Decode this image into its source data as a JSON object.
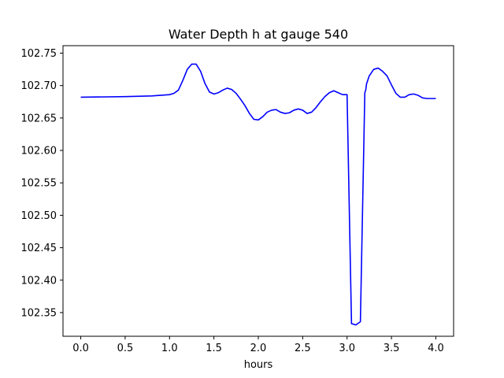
{
  "chart_data": {
    "type": "line",
    "title": "Water Depth h at gauge 540",
    "xlabel": "hours",
    "ylabel": "",
    "xlim": [
      -0.2,
      4.2
    ],
    "ylim": [
      102.3135,
      102.7615
    ],
    "xticks": [
      0.0,
      0.5,
      1.0,
      1.5,
      2.0,
      2.5,
      3.0,
      3.5,
      4.0
    ],
    "xtick_labels": [
      "0.0",
      "0.5",
      "1.0",
      "1.5",
      "2.0",
      "2.5",
      "3.0",
      "3.5",
      "4.0"
    ],
    "yticks": [
      102.35,
      102.4,
      102.45,
      102.5,
      102.55,
      102.6,
      102.65,
      102.7,
      102.75
    ],
    "ytick_labels": [
      "102.35",
      "102.40",
      "102.45",
      "102.50",
      "102.55",
      "102.60",
      "102.65",
      "102.70",
      "102.75"
    ],
    "grid": false,
    "series": [
      {
        "color": "#0000ff",
        "x": [
          0.0,
          0.5,
          0.8,
          1.0,
          1.05,
          1.1,
          1.15,
          1.2,
          1.25,
          1.3,
          1.35,
          1.4,
          1.45,
          1.5,
          1.55,
          1.6,
          1.65,
          1.7,
          1.75,
          1.8,
          1.85,
          1.9,
          1.95,
          2.0,
          2.05,
          2.1,
          2.15,
          2.2,
          2.25,
          2.3,
          2.35,
          2.4,
          2.45,
          2.5,
          2.55,
          2.6,
          2.65,
          2.7,
          2.75,
          2.8,
          2.85,
          2.9,
          2.95,
          3.0,
          3.05,
          3.1,
          3.11,
          3.15,
          3.2,
          3.21,
          3.22,
          3.25,
          3.3,
          3.35,
          3.4,
          3.45,
          3.5,
          3.55,
          3.6,
          3.65,
          3.7,
          3.75,
          3.8,
          3.85,
          3.9,
          3.95,
          4.0
        ],
        "y": [
          102.682,
          102.683,
          102.684,
          102.686,
          102.688,
          102.693,
          102.708,
          102.725,
          102.733,
          102.733,
          102.722,
          102.703,
          102.69,
          102.687,
          102.689,
          102.693,
          102.696,
          102.694,
          102.688,
          102.679,
          102.669,
          102.657,
          102.648,
          102.647,
          102.652,
          102.659,
          102.662,
          102.663,
          102.659,
          102.657,
          102.658,
          102.662,
          102.664,
          102.662,
          102.657,
          102.659,
          102.666,
          102.675,
          102.683,
          102.689,
          102.692,
          102.689,
          102.686,
          102.686,
          102.333,
          102.331,
          102.332,
          102.336,
          102.689,
          102.693,
          102.703,
          102.715,
          102.725,
          102.727,
          102.722,
          102.715,
          102.701,
          102.688,
          102.682,
          102.682,
          102.686,
          102.687,
          102.685,
          102.681,
          102.68,
          102.68,
          102.68
        ]
      }
    ]
  }
}
